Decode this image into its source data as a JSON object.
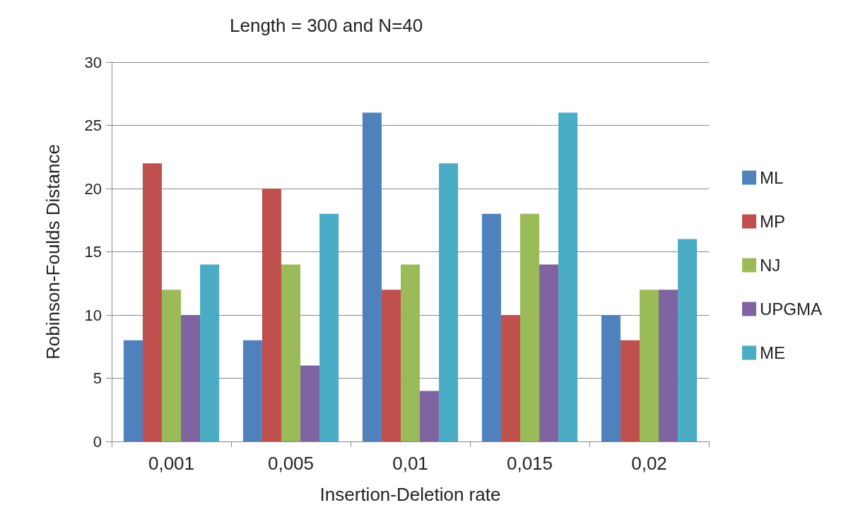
{
  "chart_data": {
    "type": "bar",
    "title": "Length = 300 and N=40",
    "xlabel": "Insertion-Deletion rate",
    "ylabel": "Robinson-Foulds Distance",
    "categories": [
      "0,001",
      "0,005",
      "0,01",
      "0,015",
      "0,02"
    ],
    "series": [
      {
        "name": "ML",
        "color": "#4f81bd",
        "values": [
          8,
          8,
          26,
          18,
          10
        ]
      },
      {
        "name": "MP",
        "color": "#c0504d",
        "values": [
          22,
          20,
          12,
          10,
          8
        ]
      },
      {
        "name": "NJ",
        "color": "#9bbb59",
        "values": [
          12,
          14,
          14,
          18,
          12
        ]
      },
      {
        "name": "UPGMA",
        "color": "#8064a2",
        "values": [
          10,
          6,
          4,
          14,
          12
        ]
      },
      {
        "name": "ME",
        "color": "#4bacc6",
        "values": [
          14,
          18,
          22,
          26,
          16
        ]
      }
    ],
    "ylim": [
      0,
      30
    ],
    "yticks": [
      0,
      5,
      10,
      15,
      20,
      25,
      30
    ],
    "grid": "y",
    "legend": "right"
  }
}
